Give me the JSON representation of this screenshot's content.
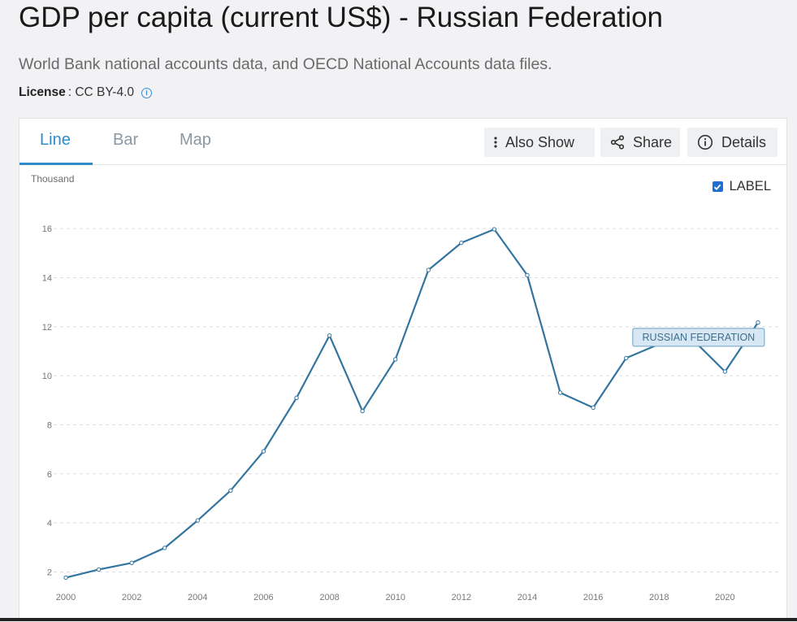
{
  "header": {
    "title": "GDP per capita (current US$) - Russian Federation",
    "subtitle": "World Bank national accounts data, and OECD National Accounts data files.",
    "license_label": "License",
    "license_value": ": CC BY-4.0"
  },
  "tabs": [
    {
      "label": "Line",
      "active": true
    },
    {
      "label": "Bar",
      "active": false
    },
    {
      "label": "Map",
      "active": false
    }
  ],
  "toolbar": {
    "also_show": "Also Show",
    "share": "Share",
    "details": "Details"
  },
  "label_toggle": {
    "label": "LABEL",
    "checked": true
  },
  "colors": {
    "accent": "#2f8cc9",
    "line": "#34759f",
    "tooltip_bg": "#d7e8f4",
    "tooltip_border": "#6aa2c8",
    "tooltip_text": "#3f6d8e"
  },
  "chart_data": {
    "type": "line",
    "ylabel": "Thousand",
    "x": [
      2000,
      2001,
      2002,
      2003,
      2004,
      2005,
      2006,
      2007,
      2008,
      2009,
      2010,
      2011,
      2012,
      2013,
      2014,
      2015,
      2016,
      2017,
      2018,
      2019,
      2020,
      2021
    ],
    "series": [
      {
        "name": "RUSSIAN FEDERATION",
        "values": [
          1.77,
          2.1,
          2.37,
          2.98,
          4.1,
          5.32,
          6.92,
          9.1,
          11.64,
          8.56,
          10.67,
          14.31,
          15.42,
          15.97,
          14.1,
          9.31,
          8.7,
          10.72,
          11.29,
          11.5,
          10.17,
          12.17
        ]
      }
    ],
    "ylim": [
      1.75,
      16.8
    ],
    "yticks": [
      2,
      4,
      6,
      8,
      10,
      12,
      14,
      16
    ],
    "xticks": [
      2000,
      2002,
      2004,
      2006,
      2008,
      2010,
      2012,
      2014,
      2016,
      2018,
      2020
    ],
    "grid": true,
    "series_label_anchor_year": 2019
  }
}
